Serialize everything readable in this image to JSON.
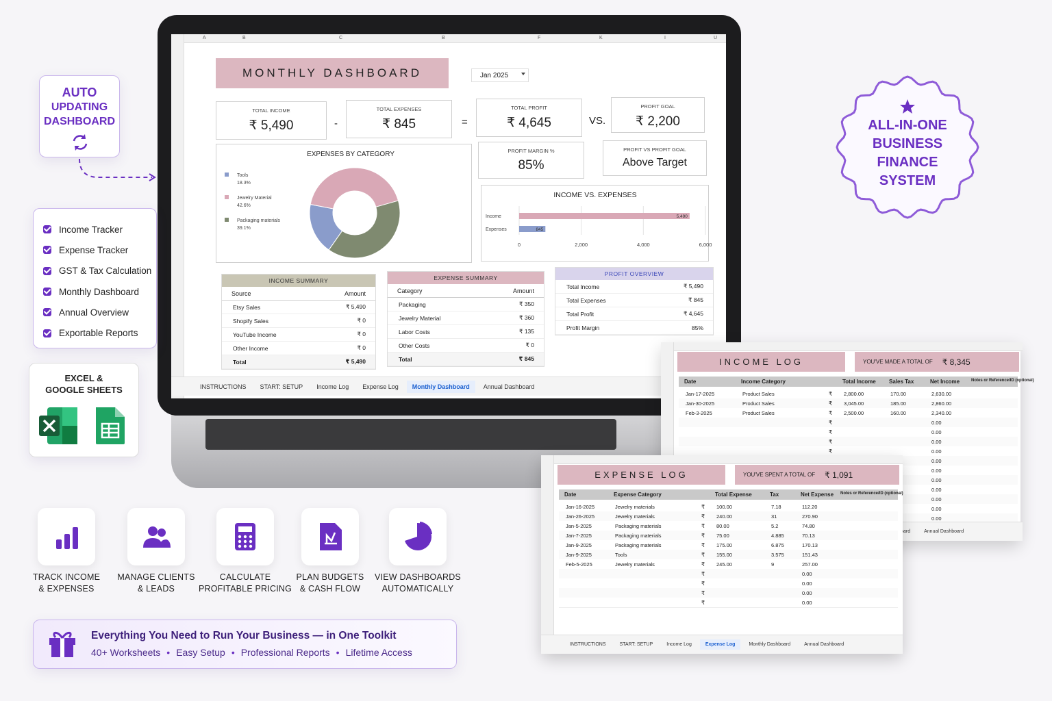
{
  "auto_update": [
    "AUTO",
    "UPDATING",
    "DASHBOARD"
  ],
  "features": [
    "Income Tracker",
    "Expense Tracker",
    "GST & Tax Calculation",
    "Monthly Dashboard",
    "Annual Overview",
    "Exportable Reports"
  ],
  "platforms": [
    "EXCEL &",
    "GOOGLE SHEETS"
  ],
  "benefits": [
    [
      "TRACK INCOME",
      "& EXPENSES"
    ],
    [
      "MANAGE CLIENTS",
      "& LEADS"
    ],
    [
      "CALCULATE",
      "PROFITABLE PRICING"
    ],
    [
      "PLAN BUDGETS",
      "& CASH FLOW"
    ],
    [
      "VIEW DASHBOARDS",
      "AUTOMATICALLY"
    ]
  ],
  "banner": {
    "title": "Everything You Need to Run Your Business — in One Toolkit",
    "items": [
      "40+ Worksheets",
      "Easy Setup",
      "Professional Reports",
      "Lifetime Access"
    ],
    "separator": "•"
  },
  "seal": [
    "ALL-IN-ONE",
    "BUSINESS",
    "FINANCE",
    "SYSTEM"
  ],
  "dashboard": {
    "columns": [
      "A",
      "B",
      "C",
      "B",
      "F",
      "K",
      "I",
      "U"
    ],
    "title": "MONTHLY DASHBOARD",
    "period": "Jan 2025",
    "kpis": [
      {
        "label": "TOTAL INCOME",
        "value": "₹ 5,490"
      },
      {
        "label": "TOTAL EXPENSES",
        "value": "₹ 845"
      },
      {
        "label": "TOTAL PROFIT",
        "value": "₹ 4,645"
      },
      {
        "label": "PROFIT GOAL",
        "value": "₹ 2,200"
      },
      {
        "label": "PROFIT MARGIN %",
        "value": "85%"
      },
      {
        "label": "PROFIT VS PROFIT GOAL",
        "value": "Above Target"
      }
    ],
    "operators": [
      "-",
      "=",
      "VS."
    ],
    "expenses_chart": {
      "type": "donut",
      "title": "EXPENSES BY CATEGORY",
      "categories": [
        "Tools",
        "Jewelry Material",
        "Packaging materials"
      ],
      "values": [
        18.3,
        42.6,
        39.1
      ],
      "value_labels": [
        "18.3%",
        "42.6%",
        "39.1%"
      ],
      "colors": [
        "#8a9ccb",
        "#d9a8b6",
        "#7f8a70"
      ]
    },
    "income_chart": {
      "type": "bar",
      "title": "INCOME VS. EXPENSES",
      "categories": [
        "Income",
        "Expenses"
      ],
      "values": [
        5490,
        845
      ],
      "value_labels": [
        "5,490",
        "845"
      ],
      "colors": [
        "#d9a8b6",
        "#8a9ccb"
      ],
      "xlim": [
        0,
        6000
      ],
      "xticks": [
        0,
        {
          "value": 2000,
          "label": "2,000"
        },
        {
          "value": 4000,
          "label": "4,000"
        },
        {
          "value": 6000,
          "label": "6,000"
        }
      ]
    },
    "income_summary": {
      "title": "INCOME SUMMARY",
      "header": [
        "Source",
        "Amount"
      ],
      "rows": [
        [
          "Etsy Sales",
          "₹ 5,490"
        ],
        [
          "Shopify Sales",
          "₹ 0"
        ],
        [
          "YouTube Income",
          "₹ 0"
        ],
        [
          "Other Income",
          "₹ 0"
        ],
        [
          "Total",
          "₹ 5,490"
        ]
      ]
    },
    "expense_summary": {
      "title": "EXPENSE SUMMARY",
      "header": [
        "Category",
        "Amount"
      ],
      "rows": [
        [
          "Packaging",
          "₹ 350"
        ],
        [
          "Jewelry Material",
          "₹ 360"
        ],
        [
          "Labor Costs",
          "₹ 135"
        ],
        [
          "Other Costs",
          "₹ 0"
        ],
        [
          "Total",
          "₹ 845"
        ]
      ]
    },
    "profit_overview": {
      "title": "PROFIT OVERVIEW",
      "rows": [
        [
          "Total Income",
          "₹ 5,490"
        ],
        [
          "Total Expenses",
          "₹ 845"
        ],
        [
          "Total Profit",
          "₹ 4,645"
        ],
        [
          "Profit Margin",
          "85%"
        ]
      ]
    },
    "tabs": [
      "INSTRUCTIONS",
      "START: SETUP",
      "Income Log",
      "Expense Log",
      "Monthly Dashboard",
      "Annual Dashboard"
    ]
  },
  "income_log": {
    "title": "INCOME LOG",
    "total_label": "YOU'VE MADE A TOTAL OF",
    "total": "₹ 8,345",
    "currency": "₹",
    "header": [
      "Date",
      "Income Category",
      "Total Income",
      "Sales Tax",
      "Net Income",
      "Notes or Reference/ID (optional)"
    ],
    "rows": [
      [
        "Jan-17-2025",
        "Product Sales",
        "2,800.00",
        "170.00",
        "2,630.00"
      ],
      [
        "Jan-30-2025",
        "Product Sales",
        "3,045.00",
        "185.00",
        "2,860.00"
      ],
      [
        "Feb-3-2025",
        "Product Sales",
        "2,500.00",
        "160.00",
        "2,340.00"
      ],
      [
        null,
        null,
        null,
        null,
        "0.00"
      ],
      [
        null,
        null,
        null,
        null,
        "0.00"
      ],
      [
        null,
        null,
        null,
        null,
        "0.00"
      ],
      [
        null,
        null,
        null,
        null,
        "0.00"
      ],
      [
        null,
        null,
        null,
        null,
        "0.00"
      ],
      [
        null,
        null,
        null,
        null,
        "0.00"
      ],
      [
        null,
        null,
        null,
        null,
        "0.00"
      ],
      [
        null,
        null,
        null,
        null,
        "0.00"
      ],
      [
        null,
        null,
        null,
        null,
        "0.00"
      ],
      [
        null,
        null,
        null,
        null,
        "0.00"
      ],
      [
        null,
        null,
        null,
        null,
        "0.00"
      ]
    ]
  },
  "expense_log": {
    "title": "EXPENSE LOG",
    "total_label": "YOU'VE SPENT A TOTAL OF",
    "total": "₹ 1,091",
    "currency": "₹",
    "header": [
      "Date",
      "Expense Category",
      "Total Expense",
      "Tax",
      "Net Expense",
      "Notes or Reference/ID (optional)"
    ],
    "rows": [
      [
        "Jan-16-2025",
        "Jewelry materials",
        "100.00",
        "7.18",
        "112.20"
      ],
      [
        "Jan-26-2025",
        "Jewelry materials",
        "240.00",
        "31",
        "270.90"
      ],
      [
        "Jan-5-2025",
        "Packaging materials",
        "80.00",
        "5.2",
        "74.80"
      ],
      [
        "Jan-7-2025",
        "Packaging materials",
        "75.00",
        "4.885",
        "70.13"
      ],
      [
        "Jan-9-2025",
        "Packaging materials",
        "175.00",
        "6.875",
        "170.13"
      ],
      [
        "Jan-9-2025",
        "Tools",
        "155.00",
        "3.575",
        "151.43"
      ],
      [
        "Feb-5-2025",
        "Jewelry materials",
        "245.00",
        "9",
        "257.00"
      ],
      [
        null,
        null,
        null,
        null,
        "0.00"
      ],
      [
        null,
        null,
        null,
        null,
        "0.00"
      ],
      [
        null,
        null,
        null,
        null,
        "0.00"
      ],
      [
        null,
        null,
        null,
        null,
        "0.00"
      ]
    ]
  }
}
